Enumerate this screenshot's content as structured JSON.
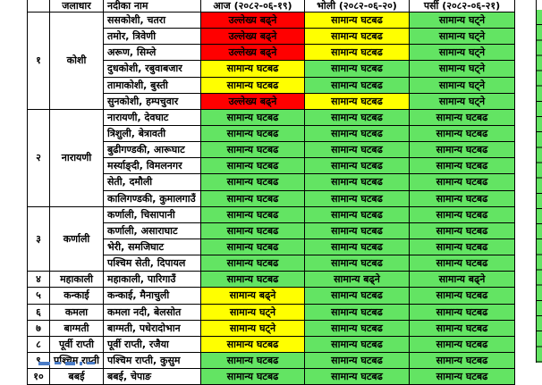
{
  "palette": {
    "status_red": "#FF0000",
    "status_yellow": "#FFFF00",
    "status_green": "#63E463",
    "border_black": "#000000",
    "cutoff_text_blue": "#4A7CC7"
  },
  "header": {
    "sn": "",
    "watershed": "जलाधार",
    "river": "नदीका नाम",
    "today": "आज (२०८२-०६-१९)",
    "tomorrow": "भोली (२०८२-०६-२०)",
    "dayafter": "पर्सी (२०८२-०६-२१)"
  },
  "status_terms": {
    "notable_rise": "उल्लेख्य बढ्ने",
    "normal_fluctuation": "सामान्य घटबढ",
    "normal_fall": "सामान्य घट्ने",
    "normal_rise": "सामान्य बढ्ने"
  },
  "sections": [
    {
      "sn": "१",
      "basin": "कोशी",
      "rows": [
        {
          "river": "ससकोशी, चतरा",
          "forecast": [
            {
              "text": "उल्लेख्य बढ्ने",
              "color": "red"
            },
            {
              "text": "सामान्य घटबढ",
              "color": "yellow"
            },
            {
              "text": "सामान्य घट्ने",
              "color": "green"
            }
          ]
        },
        {
          "river": "तमोर, त्रिवेणी",
          "forecast": [
            {
              "text": "उल्लेख्य बढ्ने",
              "color": "red"
            },
            {
              "text": "सामान्य घटबढ",
              "color": "yellow"
            },
            {
              "text": "सामान्य घट्ने",
              "color": "green"
            }
          ]
        },
        {
          "river": "अरूण, सिम्ले",
          "forecast": [
            {
              "text": "उल्लेख्य बढ्ने",
              "color": "red"
            },
            {
              "text": "सामान्य घटबढ",
              "color": "yellow"
            },
            {
              "text": "सामान्य घट्ने",
              "color": "green"
            }
          ]
        },
        {
          "river": "दुधकोशी, रबुवाबजार",
          "forecast": [
            {
              "text": "सामान्य घटबढ",
              "color": "yellow"
            },
            {
              "text": "सामान्य घटबढ",
              "color": "green"
            },
            {
              "text": "सामान्य घट्ने",
              "color": "green"
            }
          ]
        },
        {
          "river": "तामाकोशी, बुस्ती",
          "forecast": [
            {
              "text": "सामान्य घटबढ",
              "color": "yellow"
            },
            {
              "text": "सामान्य घटबढ",
              "color": "green"
            },
            {
              "text": "सामान्य घट्ने",
              "color": "green"
            }
          ]
        },
        {
          "river": "सुनकोशी, हम्पचुवार",
          "forecast": [
            {
              "text": "उल्लेख्य बढ्ने",
              "color": "red"
            },
            {
              "text": "सामान्य घटबढ",
              "color": "yellow"
            },
            {
              "text": "सामान्य घट्ने",
              "color": "green"
            }
          ]
        }
      ]
    },
    {
      "sn": "२",
      "basin": "नारायणी",
      "rows": [
        {
          "river": "नारायणी, देवघाट",
          "forecast": [
            {
              "text": "सामान्य घटबढ",
              "color": "green"
            },
            {
              "text": "सामान्य घटबढ",
              "color": "green"
            },
            {
              "text": "सामान्य घटबढ",
              "color": "green"
            }
          ]
        },
        {
          "river": "त्रिशुली, बेत्रावती",
          "forecast": [
            {
              "text": "सामान्य घटबढ",
              "color": "green"
            },
            {
              "text": "सामान्य घटबढ",
              "color": "green"
            },
            {
              "text": "सामान्य घटबढ",
              "color": "green"
            }
          ]
        },
        {
          "river": "बुढीगण्डकी, आरूघाट",
          "forecast": [
            {
              "text": "सामान्य घटबढ",
              "color": "green"
            },
            {
              "text": "सामान्य घटबढ",
              "color": "green"
            },
            {
              "text": "सामान्य घटबढ",
              "color": "green"
            }
          ]
        },
        {
          "river": "मर्स्याङ्दी, विमलनगर",
          "forecast": [
            {
              "text": "सामान्य घटबढ",
              "color": "green"
            },
            {
              "text": "सामान्य घटबढ",
              "color": "green"
            },
            {
              "text": "सामान्य घटबढ",
              "color": "green"
            }
          ]
        },
        {
          "river": "सेती, दमौली",
          "forecast": [
            {
              "text": "सामान्य घटबढ",
              "color": "green"
            },
            {
              "text": "सामान्य घटबढ",
              "color": "green"
            },
            {
              "text": "सामान्य घटबढ",
              "color": "green"
            }
          ]
        },
        {
          "river": "कालिगण्डकी, कुमालगाउँ",
          "forecast": [
            {
              "text": "सामान्य घटबढ",
              "color": "green"
            },
            {
              "text": "सामान्य घटबढ",
              "color": "green"
            },
            {
              "text": "सामान्य घटबढ",
              "color": "green"
            }
          ]
        }
      ]
    },
    {
      "sn": "३",
      "basin": "कर्णाली",
      "rows": [
        {
          "river": "कर्णाली, चिसापानी",
          "forecast": [
            {
              "text": "सामान्य घटबढ",
              "color": "green"
            },
            {
              "text": "सामान्य घटबढ",
              "color": "green"
            },
            {
              "text": "सामान्य घटबढ",
              "color": "green"
            }
          ]
        },
        {
          "river": "कर्णाली, असाराघाट",
          "forecast": [
            {
              "text": "सामान्य घटबढ",
              "color": "green"
            },
            {
              "text": "सामान्य घटबढ",
              "color": "green"
            },
            {
              "text": "सामान्य घटबढ",
              "color": "green"
            }
          ]
        },
        {
          "river": "भेरी, समजिघाट",
          "forecast": [
            {
              "text": "सामान्य घटबढ",
              "color": "green"
            },
            {
              "text": "सामान्य घटबढ",
              "color": "green"
            },
            {
              "text": "सामान्य घटबढ",
              "color": "green"
            }
          ]
        },
        {
          "river": "पश्चिम सेती, दिपायल",
          "forecast": [
            {
              "text": "सामान्य घटबढ",
              "color": "green"
            },
            {
              "text": "सामान्य घटबढ",
              "color": "green"
            },
            {
              "text": "सामान्य घटबढ",
              "color": "green"
            }
          ]
        }
      ]
    },
    {
      "sn": "४",
      "basin": "महाकाली",
      "rows": [
        {
          "river": "महाकाली, पारिगाउँ",
          "forecast": [
            {
              "text": "सामान्य घटबढ",
              "color": "green"
            },
            {
              "text": "सामान्य बढ्ने",
              "color": "green"
            },
            {
              "text": "सामान्य बढ्ने",
              "color": "green"
            }
          ]
        }
      ]
    },
    {
      "sn": "५",
      "basin": "कन्काई",
      "rows": [
        {
          "river": "कन्काई, मैनाचुली",
          "forecast": [
            {
              "text": "सामान्य बढ्ने",
              "color": "yellow"
            },
            {
              "text": "सामान्य घटबढ",
              "color": "green"
            },
            {
              "text": "सामान्य घटबढ",
              "color": "green"
            }
          ]
        }
      ]
    },
    {
      "sn": "६",
      "basin": "कमला",
      "rows": [
        {
          "river": "कमला नदी, बेलसोत",
          "forecast": [
            {
              "text": "सामान्य घट्ने",
              "color": "yellow"
            },
            {
              "text": "सामान्य घटबढ",
              "color": "green"
            },
            {
              "text": "सामान्य घटबढ",
              "color": "green"
            }
          ]
        }
      ]
    },
    {
      "sn": "७",
      "basin": "बाग्मती",
      "rows": [
        {
          "river": "बाग्मती, पधेरादोभान",
          "forecast": [
            {
              "text": "सामान्य घट्ने",
              "color": "yellow"
            },
            {
              "text": "सामान्य घटबढ",
              "color": "green"
            },
            {
              "text": "सामान्य घटबढ",
              "color": "green"
            }
          ]
        }
      ]
    },
    {
      "sn": "८",
      "basin": "पूर्वी राप्ती",
      "rows": [
        {
          "river": "पूर्वी राप्ती, रजैया",
          "forecast": [
            {
              "text": "सामान्य घटबढ",
              "color": "yellow"
            },
            {
              "text": "सामान्य घटबढ",
              "color": "green"
            },
            {
              "text": "सामान्य घटबढ",
              "color": "green"
            }
          ]
        }
      ]
    },
    {
      "sn": "९",
      "basin": "पश्चिम राप्ती",
      "rows": [
        {
          "river": "पश्चिम राप्ती, कुसुम",
          "forecast": [
            {
              "text": "सामान्य घटबढ",
              "color": "green"
            },
            {
              "text": "सामान्य घटबढ",
              "color": "green"
            },
            {
              "text": "सामान्य घटबढ",
              "color": "green"
            }
          ]
        }
      ]
    },
    {
      "sn": "१०",
      "basin": "बबई",
      "rows": [
        {
          "river": "बबई, चेपाङ",
          "forecast": [
            {
              "text": "सामान्य घटबढ",
              "color": "green"
            },
            {
              "text": "सामान्य घटबढ",
              "color": "green"
            },
            {
              "text": "सामान्य घटबढ",
              "color": "green"
            }
          ]
        }
      ]
    }
  ]
}
